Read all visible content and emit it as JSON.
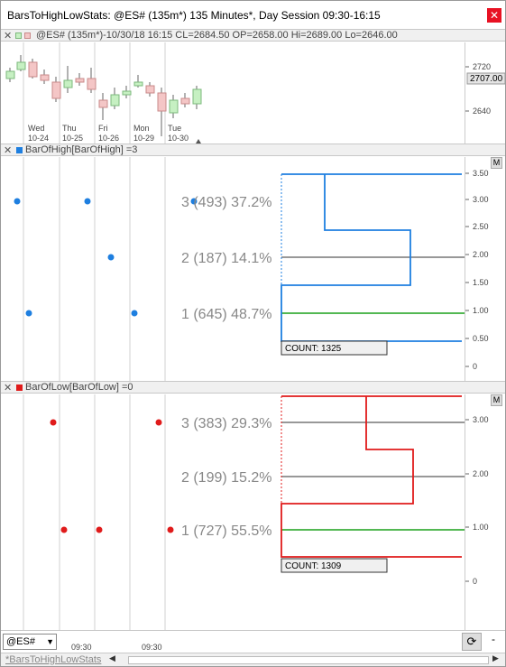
{
  "window": {
    "title": "BarsToHighLowStats: @ES# (135m*) 135 Minutes*, Day Session 09:30-16:15",
    "close_glyph": "✕"
  },
  "price_pane": {
    "header": "@ES# (135m*)-10/30/18 16:15 CL=2684.50 OP=2658.00 Hi=2689.00 Lo=2646.00",
    "axis_labels": [
      "2720",
      "2640"
    ],
    "last_price": "2707.00",
    "day_labels": [
      {
        "day": "Wed",
        "date": "10-24"
      },
      {
        "day": "Thu",
        "date": "10-25"
      },
      {
        "day": "Fri",
        "date": "10-26"
      },
      {
        "day": "Mon",
        "date": "10-29"
      },
      {
        "day": "Tue",
        "date": "10-30"
      }
    ],
    "colors": {
      "up": "#c6f0c2",
      "down": "#f4c6c6",
      "outline_up": "#7cb97c",
      "outline_down": "#c98a8a"
    }
  },
  "high_pane": {
    "header": "BarOfHigh[BarOfHigh] =3",
    "color": "#1e7fe0",
    "m_label": "M",
    "stats": [
      {
        "text": "3 (493) 37.2%"
      },
      {
        "text": "2 (187) 14.1%"
      },
      {
        "text": "1 (645) 48.7%"
      }
    ],
    "count_label": "COUNT: 1325",
    "axis_labels": [
      "3.50",
      "3.00",
      "2.50",
      "2.00",
      "1.50",
      "1.00",
      "0.50",
      "0"
    ]
  },
  "low_pane": {
    "header": "BarOfLow[BarOfLow] =0",
    "color": "#e01b1b",
    "m_label": "M",
    "stats": [
      {
        "text": "3 (383) 29.3%"
      },
      {
        "text": "2 (199) 15.2%"
      },
      {
        "text": "1 (727) 55.5%"
      }
    ],
    "count_label": "COUNT: 1309",
    "axis_labels": [
      "3.00",
      "2.00",
      "1.00",
      "0"
    ]
  },
  "bottom": {
    "symbol": "@ES#",
    "time_labels": [
      "09:30",
      "09:30"
    ],
    "refresh_icon": "⟳",
    "dash": "-"
  },
  "tabs": {
    "active_tab": "*BarsToHighLowStats",
    "left_arrow": "◀",
    "right_arrow": "▶"
  }
}
